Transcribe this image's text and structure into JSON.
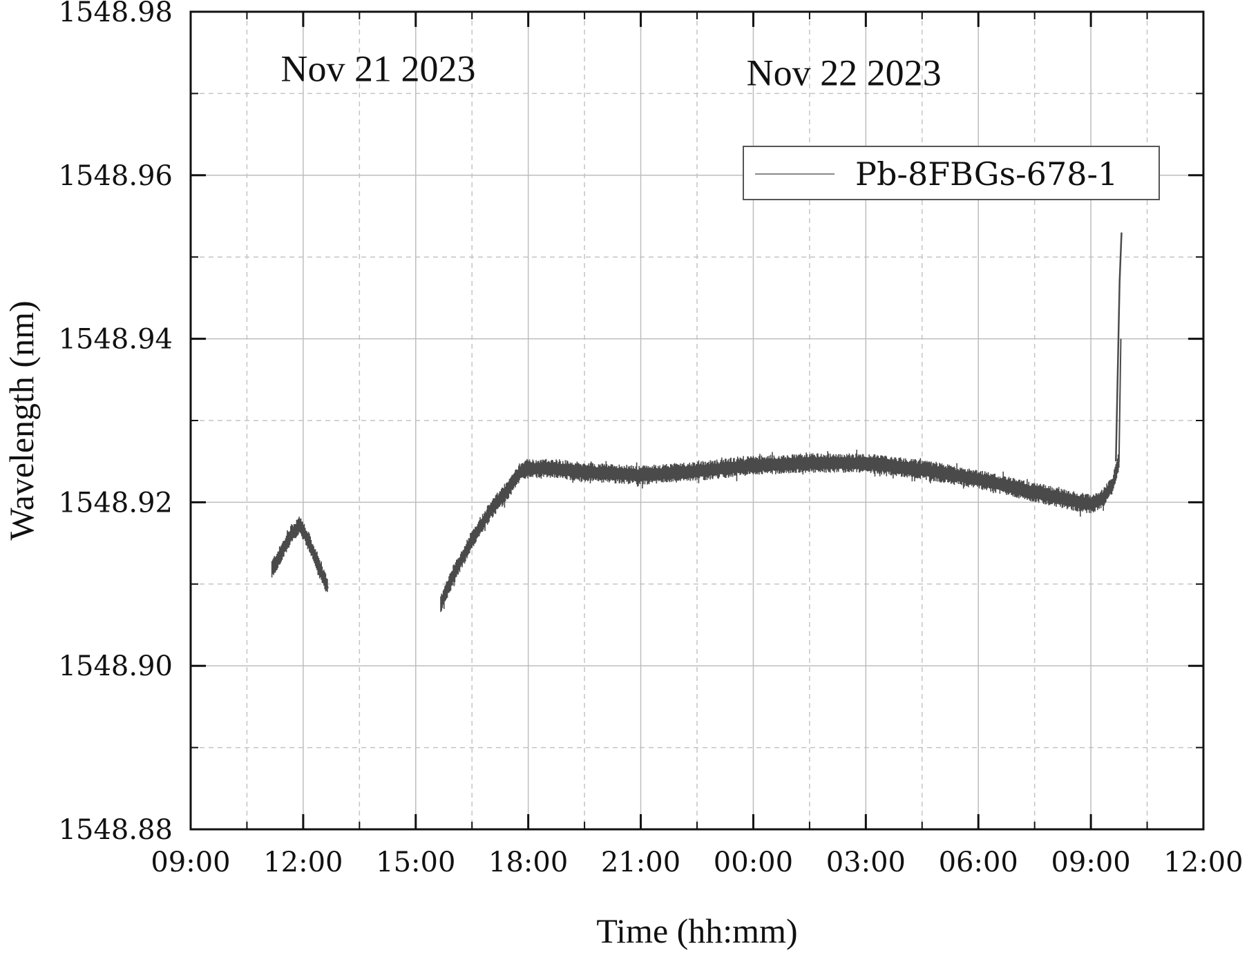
{
  "chart_data": {
    "type": "line",
    "xlabel": "Time (hh:mm)",
    "ylabel": "Wavelength (nm)",
    "xlim": [
      "2023-11-21 09:00",
      "2023-11-22 12:00"
    ],
    "ylim": [
      1548.88,
      1548.98
    ],
    "x_ticks": [
      "09:00",
      "12:00",
      "15:00",
      "18:00",
      "21:00",
      "00:00",
      "03:00",
      "06:00",
      "09:00",
      "12:00"
    ],
    "y_ticks": [
      "1548.88",
      "1548.90",
      "1548.92",
      "1548.94",
      "1548.96",
      "1548.98"
    ],
    "grid": true,
    "legend": {
      "placement": "top-right",
      "entries": [
        "Pb-8FBGs-678-1"
      ]
    },
    "annotations": [
      {
        "text": "Nov 21 2023",
        "x": "2023-11-21 14:00",
        "y": 1548.9715
      },
      {
        "text": "Nov 22 2023",
        "x": "2023-11-22 02:25",
        "y": 1548.971
      }
    ],
    "series": [
      {
        "name": "Pb-8FBGs-678-1",
        "color": "#4a4a4a",
        "band_half_width": 0.0012,
        "segments": [
          {
            "x": [
              "2023-11-21 11:10",
              "2023-11-21 11:25",
              "2023-11-21 11:40",
              "2023-11-21 11:55",
              "2023-11-21 12:10",
              "2023-11-21 12:25",
              "2023-11-21 12:40"
            ],
            "y": [
              1548.9118,
              1548.9138,
              1548.916,
              1548.9172,
              1548.915,
              1548.912,
              1548.9095
            ]
          },
          {
            "x": [
              "2023-11-21 15:40",
              "2023-11-21 16:00",
              "2023-11-21 16:30",
              "2023-11-21 17:00",
              "2023-11-21 17:30",
              "2023-11-21 17:50",
              "2023-11-21 18:30",
              "2023-11-21 19:30",
              "2023-11-21 21:00",
              "2023-11-21 22:30",
              "2023-11-22 00:00",
              "2023-11-22 01:30",
              "2023-11-22 03:00",
              "2023-11-22 04:30",
              "2023-11-22 06:00",
              "2023-11-22 07:30",
              "2023-11-22 08:30",
              "2023-11-22 09:00",
              "2023-11-22 09:20",
              "2023-11-22 09:35",
              "2023-11-22 09:45",
              "2023-11-22 09:48"
            ],
            "y": [
              1548.9075,
              1548.911,
              1548.9155,
              1548.919,
              1548.9218,
              1548.924,
              1548.9242,
              1548.9237,
              1548.9233,
              1548.9238,
              1548.9245,
              1548.9248,
              1548.9248,
              1548.924,
              1548.9228,
              1548.9212,
              1548.9202,
              1548.9198,
              1548.9205,
              1548.9222,
              1548.925,
              1548.94
            ]
          }
        ],
        "spike": {
          "x": [
            "2023-11-22 09:40",
            "2023-11-22 09:46",
            "2023-11-22 09:49"
          ],
          "y": [
            1548.925,
            1548.947,
            1548.953
          ]
        }
      }
    ]
  }
}
